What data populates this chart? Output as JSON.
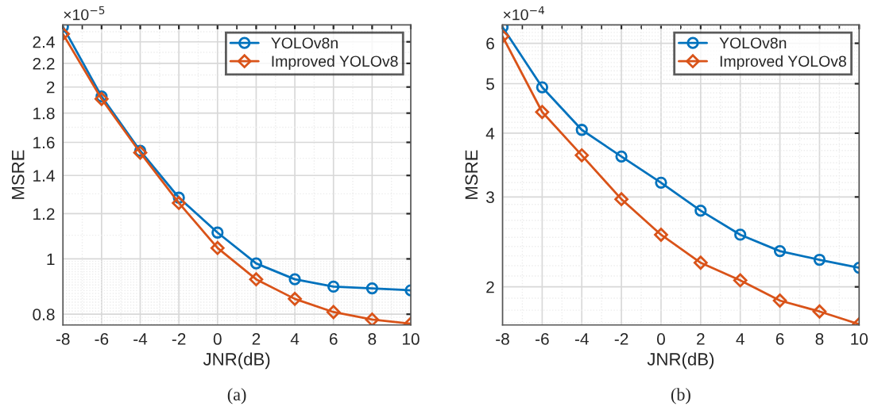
{
  "chart_data": [
    {
      "type": "line",
      "xlabel": "JNR(dB)",
      "ylabel": "MSRE",
      "log": "y",
      "grid": true,
      "legend": "top right",
      "x": [
        -8,
        -6,
        -4,
        -2,
        0,
        2,
        4,
        6,
        8,
        10
      ],
      "xlim": [
        -8,
        10
      ],
      "xticks": [
        -8,
        -6,
        -4,
        -2,
        0,
        2,
        4,
        6,
        8,
        10
      ],
      "ylim": [
        0.766,
        2.57
      ],
      "yticks": [
        0.8,
        1,
        1.2,
        1.4,
        1.6,
        1.8,
        2,
        2.2,
        2.4
      ],
      "annotations": [
        "×10$^{−5}$",
        "(a)"
      ],
      "series": [
        {
          "name": "YOLOv8n",
          "color": "#0072bd",
          "marker": "circle",
          "values": [
            2.55,
            1.925,
            1.546,
            1.28,
            1.112,
            0.982,
            0.921,
            0.894,
            0.888,
            0.881
          ]
        },
        {
          "name": "Improved YOLOv8",
          "color": "#d95319",
          "marker": "diamond",
          "values": [
            2.477,
            1.906,
            1.535,
            1.253,
            1.045,
            0.921,
            0.851,
            0.807,
            0.783,
            0.77
          ]
        }
      ]
    },
    {
      "type": "line",
      "xlabel": "JNR(dB)",
      "ylabel": "MSRE",
      "log": "y",
      "grid": true,
      "legend": "top right",
      "x": [
        -8,
        -6,
        -4,
        -2,
        0,
        2,
        4,
        6,
        8,
        10
      ],
      "xlim": [
        -8,
        10
      ],
      "xticks": [
        -8,
        -6,
        -4,
        -2,
        0,
        2,
        4,
        6,
        8,
        10
      ],
      "ylim": [
        1.684,
        6.52
      ],
      "yticks": [
        2,
        3,
        4,
        5,
        6
      ],
      "annotations": [
        "×10$^{−4}$",
        "(b)"
      ],
      "series": [
        {
          "name": "YOLOv8n",
          "color": "#0072bd",
          "marker": "circle",
          "values": [
            6.45,
            4.92,
            4.06,
            3.6,
            3.2,
            2.82,
            2.53,
            2.35,
            2.26,
            2.18
          ]
        },
        {
          "name": "Improved YOLOv8",
          "color": "#d95319",
          "marker": "diamond",
          "values": [
            6.19,
            4.4,
            3.62,
            2.97,
            2.53,
            2.23,
            2.06,
            1.88,
            1.79,
            1.69
          ]
        }
      ]
    }
  ]
}
